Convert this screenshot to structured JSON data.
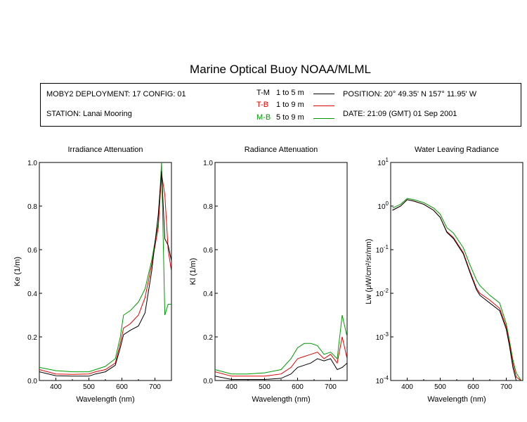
{
  "title": "Marine Optical Buoy NOAA/MLML",
  "info": {
    "deployment": "MOBY2 DEPLOYMENT: 17 CONFIG: 01",
    "station": "STATION: Lanai Mooring",
    "position": "POSITION: 20° 49.35' N   157° 11.95' W",
    "date": "DATE: 21:09 (GMT) 01 Sep 2001"
  },
  "legend": [
    {
      "code": "T-M",
      "range": "1 to 5  m",
      "color": "#000000"
    },
    {
      "code": "T-B",
      "range": "1 to 9  m",
      "color": "#e00000"
    },
    {
      "code": "M-B",
      "range": "5 to 9  m",
      "color": "#009a00"
    }
  ],
  "chart_data": [
    {
      "type": "line",
      "title": "Irradiance Attenuation",
      "xlabel": "Wavelength (nm)",
      "ylabel": "Ke  (1/m)",
      "xlim": [
        350,
        750
      ],
      "ylim": [
        0,
        1.0
      ],
      "xticks": [
        "400",
        "500",
        "600",
        "700"
      ],
      "yticks": [
        "0.0",
        "0.2",
        "0.4",
        "0.6",
        "0.8",
        "1.0"
      ],
      "x": [
        350,
        400,
        450,
        500,
        520,
        550,
        580,
        595,
        605,
        625,
        650,
        670,
        690,
        710,
        720,
        730,
        740,
        750
      ],
      "series": [
        {
          "name": "T-M",
          "color": "#000000",
          "values": [
            0.04,
            0.022,
            0.02,
            0.02,
            0.03,
            0.04,
            0.07,
            0.15,
            0.21,
            0.23,
            0.25,
            0.31,
            0.5,
            0.76,
            0.96,
            0.65,
            0.62,
            0.55
          ]
        },
        {
          "name": "T-B",
          "color": "#e00000",
          "values": [
            0.05,
            0.03,
            0.028,
            0.03,
            0.04,
            0.05,
            0.08,
            0.17,
            0.24,
            0.26,
            0.3,
            0.38,
            0.53,
            0.7,
            0.95,
            0.85,
            0.6,
            0.5
          ]
        },
        {
          "name": "M-B",
          "color": "#009a00",
          "values": [
            0.06,
            0.045,
            0.04,
            0.04,
            0.05,
            0.065,
            0.1,
            0.2,
            0.3,
            0.32,
            0.36,
            0.42,
            0.55,
            0.72,
            1.0,
            0.3,
            0.35,
            0.35
          ]
        }
      ]
    },
    {
      "type": "line",
      "title": "Radiance Attenuation",
      "xlabel": "Wavelength (nm)",
      "ylabel": "Kl  (1/m)",
      "xlim": [
        350,
        750
      ],
      "ylim": [
        0,
        1.0
      ],
      "xticks": [
        "400",
        "500",
        "600",
        "700"
      ],
      "yticks": [
        "0.0",
        "0.2",
        "0.4",
        "0.6",
        "0.8",
        "1.0"
      ],
      "x": [
        350,
        400,
        450,
        500,
        550,
        580,
        600,
        620,
        640,
        660,
        680,
        700,
        720,
        735,
        750
      ],
      "series": [
        {
          "name": "T-M",
          "color": "#000000",
          "values": [
            0.02,
            0.005,
            0.005,
            0.005,
            0.01,
            0.03,
            0.06,
            0.07,
            0.08,
            0.1,
            0.09,
            0.1,
            0.05,
            0.06,
            0.08
          ]
        },
        {
          "name": "T-B",
          "color": "#e00000",
          "values": [
            0.04,
            0.02,
            0.02,
            0.02,
            0.03,
            0.06,
            0.1,
            0.11,
            0.12,
            0.13,
            0.1,
            0.12,
            0.08,
            0.2,
            0.1
          ]
        },
        {
          "name": "M-B",
          "color": "#009a00",
          "values": [
            0.05,
            0.03,
            0.03,
            0.035,
            0.05,
            0.1,
            0.15,
            0.17,
            0.17,
            0.16,
            0.12,
            0.13,
            0.1,
            0.3,
            0.2
          ]
        }
      ]
    },
    {
      "type": "line",
      "title": "Water Leaving Radiance",
      "xlabel": "Wavelength (nm)",
      "ylabel": "Lw  (μW/cm²/sr/nm)",
      "xlim": [
        350,
        750
      ],
      "ylim": [
        0.0001,
        10
      ],
      "yscale": "log",
      "xticks": [
        "400",
        "500",
        "600",
        "700"
      ],
      "yticks": [
        "10-4",
        "10-3",
        "10-2",
        "10-1",
        "100",
        "101"
      ],
      "x": [
        355,
        380,
        400,
        420,
        450,
        480,
        500,
        520,
        540,
        570,
        590,
        610,
        620,
        650,
        680,
        700,
        710,
        720,
        730,
        745
      ],
      "series": [
        {
          "name": "T-M",
          "color": "#000000",
          "values": [
            0.8,
            1.0,
            1.4,
            1.3,
            1.1,
            0.8,
            0.55,
            0.25,
            0.18,
            0.08,
            0.03,
            0.012,
            0.009,
            0.006,
            0.004,
            0.0015,
            0.0006,
            0.0002,
            0.0001,
            0.0001
          ]
        },
        {
          "name": "T-B",
          "color": "#e00000",
          "values": [
            0.8,
            1.0,
            1.4,
            1.3,
            1.1,
            0.8,
            0.55,
            0.26,
            0.19,
            0.085,
            0.032,
            0.013,
            0.01,
            0.007,
            0.0045,
            0.0017,
            0.0007,
            0.00025,
            0.00012,
            0.0001
          ]
        },
        {
          "name": "M-B",
          "color": "#009a00",
          "values": [
            0.9,
            1.1,
            1.5,
            1.4,
            1.2,
            0.9,
            0.65,
            0.32,
            0.24,
            0.11,
            0.045,
            0.02,
            0.015,
            0.009,
            0.006,
            0.002,
            0.0008,
            0.0003,
            0.00015,
            0.0001
          ]
        }
      ]
    }
  ]
}
